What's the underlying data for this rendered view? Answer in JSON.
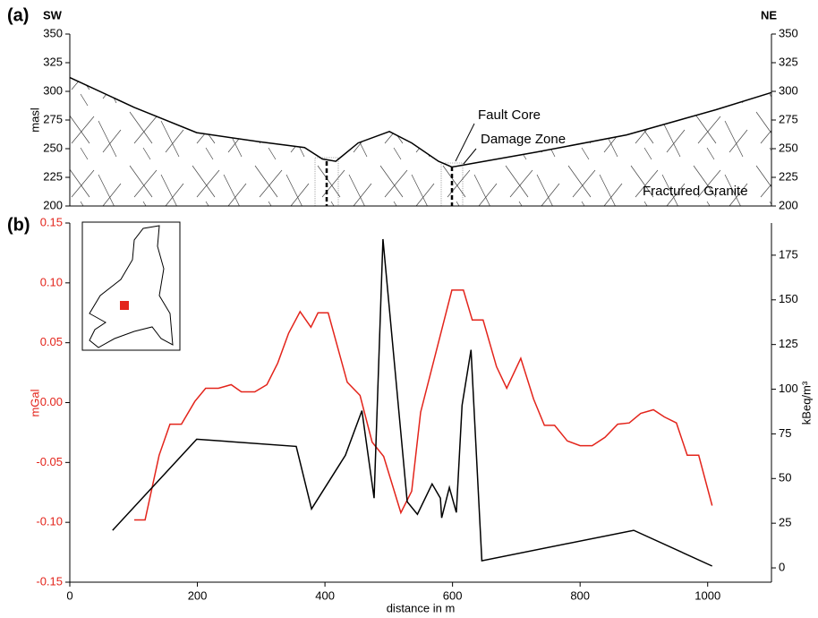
{
  "chart_data": [
    {
      "type": "area",
      "panel_label": "(a)",
      "left_label": "SW",
      "right_label": "NE",
      "ylabel": "masl",
      "annotations": [
        "Fault Core",
        "Damage Zone",
        "Fractured Granite"
      ],
      "xlim": [
        0,
        1100
      ],
      "ylim": [
        200,
        350
      ],
      "yticks": [
        200,
        225,
        250,
        275,
        300,
        325,
        350
      ],
      "mirror_y": true,
      "x": [
        0,
        101,
        199,
        297,
        368,
        396,
        417,
        452,
        501,
        536,
        578,
        599,
        620,
        732,
        873,
        1013,
        1100
      ],
      "series": [
        {
          "color": "#000000",
          "values": [
            312,
            286,
            264,
            256,
            251,
            241,
            239,
            255,
            265,
            255,
            239,
            234,
            236,
            247,
            262,
            284,
            299
          ]
        }
      ]
    },
    {
      "type": "line",
      "panel_label": "(b)",
      "xlabel": "distance in m",
      "ylabel": "mGal",
      "y2label": "kBeq/m³",
      "ylabel_color": "#e3241b",
      "xlim": [
        0,
        1100
      ],
      "xticks": [
        0,
        200,
        400,
        600,
        800,
        1000
      ],
      "ylim": [
        -0.15,
        0.15
      ],
      "yticks": [
        -0.15,
        {
          "value": -0.1,
          "label": "-0.10"
        },
        -0.05,
        {
          "value": 0,
          "label": "0.00"
        },
        0.05,
        {
          "value": 0.1,
          "label": "0.10"
        },
        0.15
      ],
      "y2lim": [
        -8,
        193
      ],
      "y2ticks": [
        0,
        25,
        50,
        75,
        100,
        125,
        150,
        175
      ],
      "series": [
        {
          "color": "#e3241b",
          "axis": "y",
          "x": [
            101,
            118,
            140,
            157,
            175,
            196,
            213,
            233,
            253,
            269,
            290,
            309,
            326,
            343,
            361,
            378,
            389,
            405,
            435,
            455,
            474,
            492,
            519,
            536,
            550,
            599,
            617,
            631,
            648,
            669,
            685,
            707,
            727,
            744,
            760,
            780,
            800,
            819,
            839,
            859,
            877,
            895,
            915,
            932,
            951,
            968,
            986,
            1007
          ],
          "values": [
            -0.098,
            -0.098,
            -0.044,
            -0.018,
            -0.018,
            0.001,
            0.012,
            0.012,
            0.015,
            0.009,
            0.009,
            0.015,
            0.033,
            0.058,
            0.076,
            0.063,
            0.075,
            0.075,
            0.017,
            0.006,
            -0.033,
            -0.045,
            -0.092,
            -0.074,
            -0.008,
            0.094,
            0.094,
            0.069,
            0.069,
            0.03,
            0.012,
            0.037,
            0.003,
            -0.019,
            -0.019,
            -0.032,
            -0.036,
            -0.036,
            -0.029,
            -0.018,
            -0.017,
            -0.009,
            -0.006,
            -0.012,
            -0.017,
            -0.044,
            -0.044,
            -0.086
          ]
        },
        {
          "color": "#000000",
          "axis": "y2",
          "x": [
            67,
            199,
            355,
            379,
            432,
            458,
            477,
            491,
            529,
            545,
            568,
            581,
            583,
            595,
            606,
            615,
            629,
            646,
            884,
            1007
          ],
          "values": [
            21,
            72,
            68,
            33,
            63,
            88,
            39,
            184,
            37,
            30,
            47,
            39,
            28,
            45,
            31,
            91,
            122,
            4,
            21,
            1
          ]
        }
      ]
    }
  ]
}
